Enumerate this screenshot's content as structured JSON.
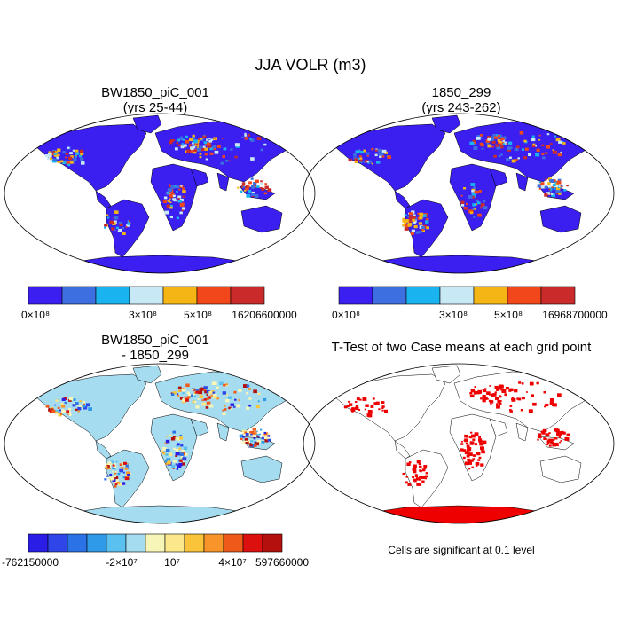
{
  "figure": {
    "title": "JJA VOLR (m3)"
  },
  "panels": [
    {
      "id": "case1",
      "title_line1": "BW1850_piC_001",
      "title_line2": "(yrs 25-44)",
      "colorbar": {
        "colors": [
          "#3a1ff0",
          "#3d6fe0",
          "#19b4ef",
          "#c9e8f5",
          "#f5b615",
          "#f2461b",
          "#cb2a2a"
        ],
        "labels": [
          "0×10⁸",
          "3×10⁸",
          "5×10⁸",
          "16206600000"
        ]
      }
    },
    {
      "id": "case2",
      "title_line1": "1850_299",
      "title_line2": "(yrs 243-262)",
      "colorbar": {
        "colors": [
          "#3a1ff0",
          "#3d6fe0",
          "#19b4ef",
          "#c9e8f5",
          "#f5b615",
          "#f2461b",
          "#cb2a2a"
        ],
        "labels": [
          "0×10⁸",
          "3×10⁸",
          "5×10⁸",
          "16968700000"
        ]
      }
    },
    {
      "id": "diff",
      "title_line1": "BW1850_piC_001",
      "title_line2": "- 1850_299",
      "colorbar": {
        "colors": [
          "#2a1ee6",
          "#2f45e8",
          "#2b72e6",
          "#2f9ae8",
          "#5ac0ef",
          "#a6dcef",
          "#f7f5b8",
          "#fce88a",
          "#f9c33a",
          "#f7952a",
          "#ef5a1a",
          "#dd1010",
          "#b3100e"
        ],
        "labels": [
          "-762150000",
          "-2×10⁷",
          "10⁷",
          "4×10⁷",
          "597660000"
        ]
      }
    },
    {
      "id": "ttest",
      "title_line1": "T-Test of two Case means at each grid point",
      "note": "Cells are significant at 0.1 level"
    }
  ],
  "map_colors": {
    "ocean": "#ffffff",
    "land_low": "#3a1ff0",
    "significant": "#ee0000",
    "diff_land": "#a6dcef"
  }
}
